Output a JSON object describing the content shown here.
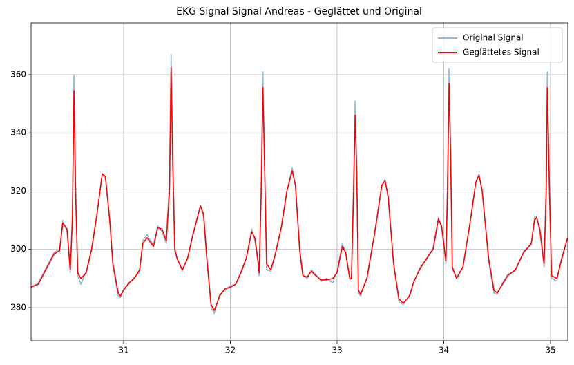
{
  "chart_data": {
    "type": "line",
    "title": "EKG Signal Signal Andreas - Geglättet und Original",
    "x": [
      30.13,
      30.2,
      30.3,
      30.35,
      30.4,
      30.43,
      30.47,
      30.5,
      30.52,
      30.535,
      30.55,
      30.57,
      30.6,
      30.65,
      30.7,
      30.75,
      30.8,
      30.83,
      30.87,
      30.9,
      30.95,
      30.97,
      31.0,
      31.05,
      31.1,
      31.15,
      31.18,
      31.22,
      31.28,
      31.32,
      31.36,
      31.4,
      31.43,
      31.445,
      31.46,
      31.48,
      31.5,
      31.55,
      31.6,
      31.65,
      31.72,
      31.75,
      31.78,
      31.82,
      31.85,
      31.9,
      31.95,
      32.0,
      32.05,
      32.1,
      32.15,
      32.2,
      32.23,
      32.26,
      32.27,
      32.29,
      32.305,
      32.32,
      32.34,
      32.38,
      32.42,
      32.48,
      32.53,
      32.58,
      32.61,
      32.65,
      32.68,
      32.72,
      32.76,
      32.8,
      32.85,
      32.9,
      32.96,
      33.0,
      33.05,
      33.08,
      33.12,
      33.135,
      33.155,
      33.17,
      33.185,
      33.2,
      33.22,
      33.28,
      33.35,
      33.42,
      33.45,
      33.48,
      33.53,
      33.58,
      33.62,
      33.68,
      33.72,
      33.78,
      33.85,
      33.9,
      33.95,
      33.98,
      34.02,
      34.035,
      34.05,
      34.065,
      34.08,
      34.12,
      34.18,
      34.25,
      34.3,
      34.33,
      34.36,
      34.42,
      34.47,
      34.5,
      34.55,
      34.6,
      34.67,
      34.75,
      34.82,
      34.85,
      34.87,
      34.9,
      34.94,
      34.96,
      34.97,
      34.99,
      35.01,
      35.06,
      35.1,
      35.16
    ],
    "series": [
      {
        "name": "Original Signal",
        "color": "#8fbbd9",
        "values": [
          287,
          288.5,
          295.5,
          299,
          300,
          310,
          306,
          292,
          312,
          360,
          322,
          291,
          288,
          292.5,
          300,
          312,
          326,
          324,
          310,
          294,
          284,
          283.5,
          286.5,
          288,
          290.5,
          292,
          303,
          305,
          301.5,
          308,
          306,
          302,
          324,
          367,
          333,
          299,
          297,
          292.5,
          297,
          305.5,
          315,
          311,
          296,
          280,
          278,
          284.5,
          286,
          287.5,
          288,
          292.5,
          297,
          307,
          303,
          295,
          291,
          323,
          361,
          333,
          293,
          292.5,
          298.5,
          308,
          320,
          328,
          322,
          299,
          291,
          290,
          293,
          291.5,
          289,
          290,
          288.5,
          292.5,
          302,
          299,
          289.5,
          290,
          324,
          351,
          327,
          285,
          284,
          290.5,
          305,
          322,
          324,
          317,
          295,
          282,
          281,
          284.5,
          289,
          294,
          297,
          300.5,
          311,
          307,
          295,
          324,
          362,
          333,
          293,
          290.5,
          294,
          310,
          323,
          326,
          320,
          296,
          285,
          284.5,
          288.5,
          291.5,
          292.5,
          299.5,
          301.5,
          311,
          311.5,
          306,
          294,
          324,
          361,
          322,
          290,
          289,
          296.5,
          304
        ]
      },
      {
        "name": "Geglättetes Signal",
        "color": "#ff0000",
        "values": [
          287,
          288,
          295,
          298.5,
          299.5,
          309,
          307,
          293,
          310,
          354.5,
          320,
          292,
          290,
          292,
          300,
          312,
          326,
          325,
          310,
          295,
          285,
          284,
          286,
          288.5,
          290,
          293,
          302,
          304,
          301,
          307.5,
          307,
          303,
          320,
          362.5,
          330,
          300,
          297,
          293,
          297,
          305,
          315,
          312,
          297,
          281,
          279,
          284,
          286.5,
          287,
          288,
          292,
          297,
          306,
          304,
          296,
          292,
          320,
          355.5,
          330,
          295,
          293,
          298,
          308,
          320,
          327,
          322,
          300,
          291,
          290.5,
          292.5,
          291,
          289.5,
          289.5,
          290,
          292,
          301,
          299,
          290,
          290,
          320,
          346,
          325,
          286,
          284.5,
          290,
          305,
          322,
          323.5,
          318,
          295,
          283,
          281.5,
          284,
          289,
          293.5,
          297.5,
          300,
          310.5,
          308,
          296,
          320,
          357,
          330,
          294,
          290,
          294,
          310,
          323,
          325.5,
          320,
          297,
          286,
          285,
          288,
          291,
          293,
          299,
          302,
          310,
          311,
          307,
          295,
          320,
          355.5,
          320,
          291,
          290,
          296,
          304
        ]
      }
    ],
    "xlim": [
      30.133,
      35.162
    ],
    "ylim": [
      268.6,
      377.8
    ],
    "xticks": [
      31,
      32,
      33,
      34,
      35
    ],
    "yticks": [
      280,
      300,
      320,
      340,
      360
    ],
    "grid": true,
    "legend": "upper right"
  }
}
